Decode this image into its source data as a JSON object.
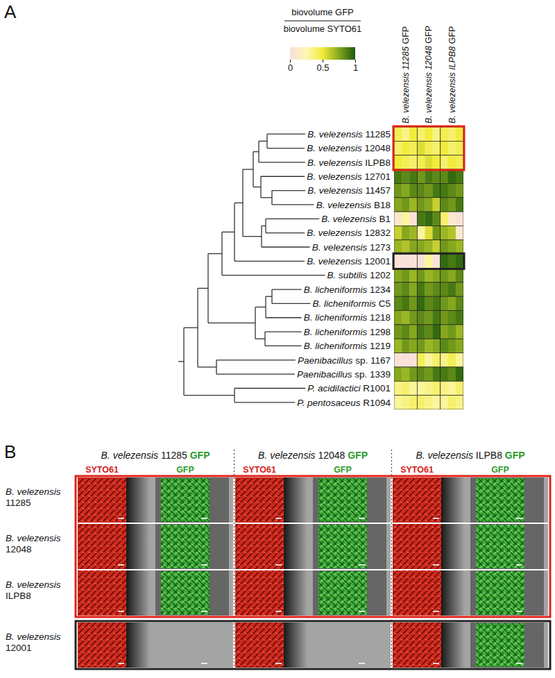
{
  "chart_data": {
    "type": "heatmap",
    "panel_label": "A",
    "categories": [
      "B. velezensis 11285",
      "B. velezensis 12048",
      "B. velezensis ILPB8",
      "B. velezensis 12701",
      "B. velezensis 11457",
      "B. velezensis B18",
      "B. velezensis B1",
      "B. velezensis 12832",
      "B. velezensis 1273",
      "B. velezensis 12001",
      "B. subtilis 1202",
      "B. licheniformis 1234",
      "B. licheniformis C5",
      "B. licheniformis 1218",
      "B. licheniformis 1298",
      "B. licheniformis 1219",
      "Paenibacillus sp. 1167",
      "Paenibacillus sp. 1339",
      "P. acidilactici R1001",
      "P. pentosaceus R1094"
    ],
    "columns": [
      "B. velezensis 11285 GFP",
      "B. velezensis 12048 GFP",
      "B. velezensis ILPB8 GFP"
    ],
    "values": [
      [
        [
          0.45,
          0.35,
          0.5
        ],
        [
          0.4,
          0.5,
          0.35
        ],
        [
          0.45,
          0.4,
          0.5
        ]
      ],
      [
        [
          0.4,
          0.5,
          0.45
        ],
        [
          0.55,
          0.45,
          0.4
        ],
        [
          0.5,
          0.4,
          0.45
        ]
      ],
      [
        [
          0.5,
          0.45,
          0.4
        ],
        [
          0.45,
          0.55,
          0.5
        ],
        [
          0.4,
          0.5,
          0.45
        ]
      ],
      [
        [
          0.9,
          0.85,
          0.9
        ],
        [
          0.8,
          0.9,
          0.85
        ],
        [
          0.85,
          0.95,
          0.9
        ]
      ],
      [
        [
          0.8,
          0.75,
          0.85
        ],
        [
          0.85,
          0.8,
          0.9
        ],
        [
          0.9,
          0.85,
          0.8
        ]
      ],
      [
        [
          0.75,
          0.8,
          0.7
        ],
        [
          0.8,
          0.75,
          0.6
        ],
        [
          0.85,
          0.8,
          0.9
        ]
      ],
      [
        [
          0.1,
          0.3,
          0.05
        ],
        [
          0.9,
          0.95,
          0.85
        ],
        [
          0.4,
          0.1,
          0.05
        ]
      ],
      [
        [
          0.6,
          0.75,
          0.7
        ],
        [
          0.3,
          0.55,
          0.8
        ],
        [
          0.7,
          0.65,
          0.1
        ]
      ],
      [
        [
          0.7,
          0.65,
          0.75
        ],
        [
          0.75,
          0.7,
          0.6
        ],
        [
          0.8,
          0.75,
          0.7
        ]
      ],
      [
        [
          0.05,
          0.02,
          0.05
        ],
        [
          0.05,
          0.3,
          0.05
        ],
        [
          0.95,
          0.9,
          0.95
        ]
      ],
      [
        [
          0.75,
          0.8,
          0.7
        ],
        [
          0.8,
          0.7,
          0.75
        ],
        [
          0.8,
          0.75,
          0.85
        ]
      ],
      [
        [
          0.8,
          0.85,
          0.75
        ],
        [
          0.9,
          0.8,
          0.85
        ],
        [
          0.85,
          0.9,
          0.8
        ]
      ],
      [
        [
          0.85,
          0.9,
          0.8
        ],
        [
          0.95,
          0.85,
          0.9
        ],
        [
          0.8,
          0.75,
          0.85
        ]
      ],
      [
        [
          0.75,
          0.7,
          0.8
        ],
        [
          0.85,
          0.8,
          0.9
        ],
        [
          0.8,
          0.85,
          0.9
        ]
      ],
      [
        [
          0.8,
          0.85,
          0.75
        ],
        [
          0.9,
          0.85,
          0.95
        ],
        [
          0.75,
          0.8,
          0.7
        ]
      ],
      [
        [
          0.7,
          0.8,
          0.75
        ],
        [
          0.8,
          0.7,
          0.75
        ],
        [
          0.85,
          0.8,
          0.75
        ]
      ],
      [
        [
          0.05,
          0.02,
          0.05
        ],
        [
          0.45,
          0.3,
          0.4
        ],
        [
          0.35,
          0.45,
          0.3
        ]
      ],
      [
        [
          0.75,
          0.7,
          0.8
        ],
        [
          0.85,
          0.8,
          0.9
        ],
        [
          0.9,
          0.85,
          0.95
        ]
      ],
      [
        [
          0.35,
          0.4,
          0.3
        ],
        [
          0.3,
          0.35,
          0.4
        ],
        [
          0.35,
          0.3,
          0.4
        ]
      ],
      [
        [
          0.3,
          0.35,
          0.4
        ],
        [
          0.4,
          0.35,
          0.3
        ],
        [
          0.3,
          0.4,
          0.35
        ]
      ]
    ],
    "colorbar": {
      "title_numerator": "biovolume GFP",
      "title_denominator": "biovolume SYTO61",
      "range": [
        0,
        1
      ],
      "ticks": [
        0,
        0.5,
        1
      ],
      "colors": [
        "#f9dede",
        "#fdf7b4",
        "#f1ec3c",
        "#86a81e",
        "#1d5a0c"
      ]
    },
    "highlights": [
      {
        "rows": [
          0,
          2
        ],
        "color": "#e0231b"
      },
      {
        "rows": [
          9,
          9
        ],
        "color": "#222222"
      }
    ],
    "dendrogram": {
      "height": 1.35,
      "children": [
        {
          "height": 1.15,
          "children": [
            {
              "height": 1.0,
              "children": [
                {
                  "height": 0.8,
                  "children": [
                    {
                      "height": 0.62,
                      "children": [
                        {
                          "height": 0.5,
                          "children": [
                            {
                              "height": 0.35,
                              "children": [
                                {
                                  "height": 0.27,
                                  "children": [
                                    {
                                      "height": 0.15,
                                      "children": [
                                        {
                                          "leaf": 0
                                        },
                                        {
                                          "leaf": 1
                                        }
                                      ]
                                    },
                                    {
                                      "leaf": 2
                                    }
                                  ]
                                },
                                {
                                  "height": 0.24,
                                  "children": [
                                    {
                                      "leaf": 3
                                    },
                                    {
                                      "height": 0.08,
                                      "children": [
                                        {
                                          "leaf": 4
                                        },
                                        {
                                          "leaf": 5
                                        }
                                      ]
                                    }
                                  ]
                                }
                              ]
                            },
                            {
                              "height": 0.23,
                              "children": [
                                {
                                  "height": 0.17,
                                  "children": [
                                    {
                                      "leaf": 6
                                    },
                                    {
                                      "leaf": 7
                                    }
                                  ]
                                },
                                {
                                  "leaf": 8
                                }
                              ]
                            }
                          ]
                        },
                        {
                          "leaf": 9
                        }
                      ]
                    },
                    {
                      "leaf": 10
                    }
                  ]
                },
                {
                  "height": 0.32,
                  "children": [
                    {
                      "height": 0.17,
                      "children": [
                        {
                          "height": 0.08,
                          "children": [
                            {
                              "leaf": 11
                            },
                            {
                              "leaf": 12
                            }
                          ]
                        },
                        {
                          "leaf": 13
                        }
                      ]
                    },
                    {
                      "height": 0.18,
                      "children": [
                        {
                          "leaf": 14
                        },
                        {
                          "leaf": 15
                        }
                      ]
                    }
                  ]
                }
              ]
            },
            {
              "height": 0.88,
              "children": [
                {
                  "leaf": 16
                },
                {
                  "leaf": 17
                }
              ]
            }
          ]
        },
        {
          "height": 0.62,
          "children": [
            {
              "leaf": 18
            },
            {
              "leaf": 19
            }
          ]
        }
      ]
    }
  },
  "panel_b": {
    "letter": "B",
    "columns": [
      "B. velezensis 11285 GFP",
      "B. velezensis 12048 GFP",
      "B. velezensis ILPB8 GFP"
    ],
    "channels": [
      "SYTO61",
      "GFP"
    ],
    "channel_colors": [
      "#d42020",
      "#2a9a2a"
    ],
    "rows": [
      "B. velezensis 11285",
      "B. velezensis 12048",
      "B. velezensis ILPB8",
      "B. velezensis 12001"
    ],
    "gfp_signal": [
      [
        true,
        true,
        true
      ],
      [
        true,
        true,
        true
      ],
      [
        true,
        true,
        true
      ],
      [
        false,
        false,
        true
      ]
    ],
    "highlights": [
      {
        "rows": [
          0,
          2
        ],
        "color": "#e0231b"
      },
      {
        "rows": [
          3,
          3
        ],
        "color": "#222222"
      }
    ]
  }
}
